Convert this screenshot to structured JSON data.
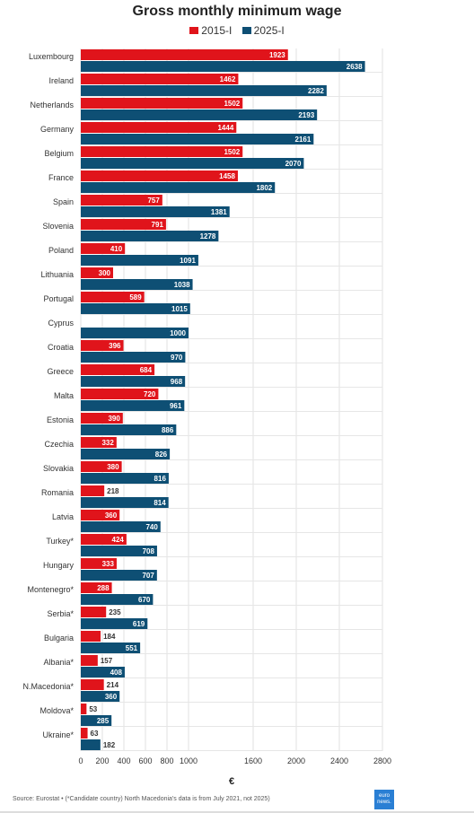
{
  "chart_data": {
    "type": "bar",
    "orientation": "horizontal",
    "title": "Gross monthly minimum wage",
    "xlabel": "€",
    "xlim": [
      0,
      2800
    ],
    "xticks": [
      0,
      200,
      400,
      600,
      800,
      1000,
      1600,
      2000,
      2400,
      2800
    ],
    "grid": true,
    "legend_position": "top-center",
    "categories": [
      "Luxembourg",
      "Ireland",
      "Netherlands",
      "Germany",
      "Belgium",
      "France",
      "Spain",
      "Slovenia",
      "Poland",
      "Lithuania",
      "Portugal",
      "Cyprus",
      "Croatia",
      "Greece",
      "Malta",
      "Estonia",
      "Czechia",
      "Slovakia",
      "Romania",
      "Latvia",
      "Turkey*",
      "Hungary",
      "Montenegro*",
      "Serbia*",
      "Bulgaria",
      "Albania*",
      "N.Macedonia*",
      "Moldova*",
      "Ukraine*"
    ],
    "series": [
      {
        "name": "2015-I",
        "color": "#e0141b",
        "values": [
          1923,
          1462,
          1502,
          1444,
          1502,
          1458,
          757,
          791,
          410,
          300,
          589,
          null,
          396,
          684,
          720,
          390,
          332,
          380,
          218,
          360,
          424,
          333,
          288,
          235,
          184,
          157,
          214,
          53,
          63
        ]
      },
      {
        "name": "2025-I",
        "color": "#0e4f74",
        "values": [
          2638,
          2282,
          2193,
          2161,
          2070,
          1802,
          1381,
          1278,
          1091,
          1038,
          1015,
          1000,
          970,
          968,
          961,
          886,
          826,
          816,
          814,
          740,
          708,
          707,
          670,
          619,
          551,
          408,
          360,
          285,
          182
        ]
      }
    ]
  },
  "footer": {
    "source": "Source: Eurostat • (*Candidate country) North Macedonia's data is from July 2021, not 2025)",
    "logo_text": "euro news."
  }
}
